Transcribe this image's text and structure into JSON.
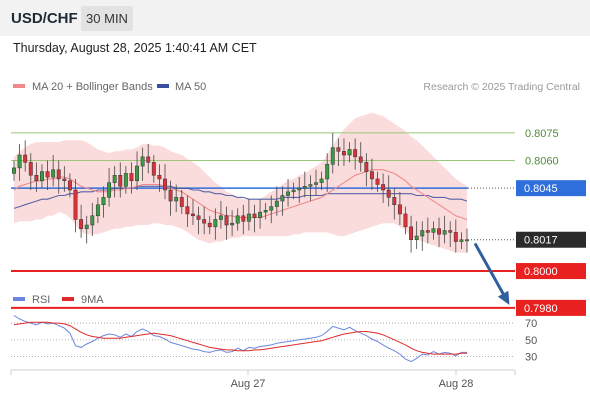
{
  "header": {
    "symbol": "USD/CHF",
    "timeframe": "30 MIN",
    "datetime": "Thursday, August 28, 2025 1:40:41 AM CET"
  },
  "legend": {
    "ma20": "MA 20 + Bollinger Bands",
    "ma50": "MA 50",
    "credit": "Research © 2025 Trading Central",
    "rsi": "RSI",
    "rsi_ma": "9MA"
  },
  "colors": {
    "up": "#3a9b45",
    "down": "#d6333a",
    "bollinger": "#f7b2b2",
    "ma20": "#f08a8a",
    "ma50": "#3a4f9e",
    "level_red": "#e8201f",
    "level_blue": "#2f6fdb",
    "level_green": "#9cc77a",
    "rsi_line": "#6b86dc",
    "rsi_ma_line": "#e02a2a",
    "arrow": "#2f5f9e"
  },
  "chart_data": [
    {
      "type": "candlestick",
      "title": "USD/CHF",
      "y_range": [
        0.7968,
        0.812
      ],
      "x_labels": [
        "Aug 27",
        "Aug 28"
      ],
      "current_price": "0.8017",
      "levels": [
        {
          "label": "0.8075",
          "value": 0.8075,
          "kind": "resistance"
        },
        {
          "label": "0.8060",
          "value": 0.806,
          "kind": "resistance"
        },
        {
          "label": "0.8045",
          "value": 0.8045,
          "kind": "pivot"
        },
        {
          "label": "0.8017",
          "value": 0.8017,
          "kind": "current"
        },
        {
          "label": "0.8000",
          "value": 0.8,
          "kind": "support"
        },
        {
          "label": "0.7980",
          "value": 0.798,
          "kind": "support"
        }
      ],
      "forecast_arrow": {
        "from": 0.8015,
        "to": 0.7983
      },
      "closes": [
        0.8056,
        0.8063,
        0.8059,
        0.8052,
        0.8049,
        0.8054,
        0.8051,
        0.8055,
        0.805,
        0.8049,
        0.8044,
        0.8028,
        0.8023,
        0.8025,
        0.803,
        0.8036,
        0.804,
        0.8048,
        0.8052,
        0.8046,
        0.8053,
        0.8049,
        0.8057,
        0.8062,
        0.8059,
        0.8052,
        0.805,
        0.8044,
        0.8038,
        0.804,
        0.8035,
        0.8031,
        0.803,
        0.8028,
        0.8026,
        0.8024,
        0.8028,
        0.803,
        0.8025,
        0.8026,
        0.803,
        0.8027,
        0.8031,
        0.8029,
        0.8032,
        0.8033,
        0.8035,
        0.8038,
        0.8041,
        0.8043,
        0.8044,
        0.8045,
        0.8046,
        0.8047,
        0.8048,
        0.805,
        0.8058,
        0.8067,
        0.8065,
        0.8063,
        0.8066,
        0.8062,
        0.8059,
        0.8054,
        0.805,
        0.8047,
        0.8044,
        0.804,
        0.8036,
        0.8031,
        0.8024,
        0.8017,
        0.8019,
        0.8022,
        0.8021,
        0.8023,
        0.802,
        0.8022,
        0.8021,
        0.8016,
        0.8017,
        0.8017
      ],
      "ma20": [
        0.8044,
        0.8046,
        0.8047,
        0.8048,
        0.8049,
        0.8049,
        0.805,
        0.805,
        0.8051,
        0.8051,
        0.805,
        0.8048,
        0.8046,
        0.8045,
        0.8044,
        0.8043,
        0.8043,
        0.8043,
        0.8044,
        0.8044,
        0.8045,
        0.8045,
        0.8046,
        0.8047,
        0.8047,
        0.8047,
        0.8047,
        0.8046,
        0.8045,
        0.8044,
        0.8043,
        0.8041,
        0.8039,
        0.8037,
        0.8035,
        0.8033,
        0.8032,
        0.8031,
        0.803,
        0.803,
        0.8029,
        0.8029,
        0.8029,
        0.8029,
        0.8029,
        0.803,
        0.8031,
        0.8032,
        0.8033,
        0.8034,
        0.8035,
        0.8036,
        0.8037,
        0.8038,
        0.8039,
        0.804,
        0.8042,
        0.8044,
        0.8046,
        0.8048,
        0.805,
        0.8052,
        0.8053,
        0.8054,
        0.8055,
        0.8055,
        0.8055,
        0.8054,
        0.8053,
        0.8051,
        0.8049,
        0.8046,
        0.8044,
        0.8042,
        0.804,
        0.8038,
        0.8036,
        0.8034,
        0.8032,
        0.803,
        0.8029,
        0.8028
      ],
      "ma50": [
        0.8034,
        0.8035,
        0.8036,
        0.8037,
        0.8038,
        0.8039,
        0.8039,
        0.804,
        0.8041,
        0.8041,
        0.8042,
        0.8042,
        0.8043,
        0.8043,
        0.8043,
        0.8044,
        0.8044,
        0.8044,
        0.8045,
        0.8045,
        0.8045,
        0.8045,
        0.8046,
        0.8046,
        0.8046,
        0.8046,
        0.8046,
        0.8046,
        0.8046,
        0.8045,
        0.8045,
        0.8045,
        0.8044,
        0.8044,
        0.8043,
        0.8043,
        0.8042,
        0.8042,
        0.8041,
        0.8041,
        0.804,
        0.804,
        0.8039,
        0.8039,
        0.8039,
        0.8039,
        0.8039,
        0.8039,
        0.804,
        0.804,
        0.804,
        0.804,
        0.8041,
        0.8041,
        0.8041,
        0.8041,
        0.8042,
        0.8042,
        0.8042,
        0.8042,
        0.8042,
        0.8042,
        0.8042,
        0.8042,
        0.8042,
        0.8042,
        0.8042,
        0.8042,
        0.8042,
        0.8042,
        0.8042,
        0.8042,
        0.8041,
        0.8041,
        0.8041,
        0.804,
        0.804,
        0.804,
        0.8039,
        0.8039,
        0.8039,
        0.8038
      ],
      "boll_width": [
        0.0018,
        0.0019,
        0.002,
        0.0021,
        0.0021,
        0.0021,
        0.002,
        0.002,
        0.0019,
        0.002,
        0.0021,
        0.0023,
        0.0025,
        0.0025,
        0.0024,
        0.0023,
        0.0022,
        0.0021,
        0.0021,
        0.0021,
        0.0021,
        0.0021,
        0.0021,
        0.0022,
        0.0022,
        0.0021,
        0.0021,
        0.0021,
        0.002,
        0.002,
        0.002,
        0.002,
        0.002,
        0.002,
        0.0019,
        0.0018,
        0.0016,
        0.0015,
        0.0013,
        0.0012,
        0.0011,
        0.001,
        0.001,
        0.001,
        0.001,
        0.0011,
        0.0012,
        0.0013,
        0.0014,
        0.0015,
        0.0015,
        0.0016,
        0.0016,
        0.0017,
        0.0018,
        0.0019,
        0.0021,
        0.0024,
        0.0027,
        0.0029,
        0.003,
        0.0031,
        0.0031,
        0.0031,
        0.0031,
        0.003,
        0.0029,
        0.0028,
        0.0027,
        0.0027,
        0.0027,
        0.0027,
        0.0027,
        0.0026,
        0.0025,
        0.0024,
        0.0023,
        0.0022,
        0.0021,
        0.002,
        0.0019,
        0.0018
      ]
    },
    {
      "type": "line",
      "title": "RSI",
      "y_ticks": [
        70,
        50,
        30
      ],
      "y_range": [
        14,
        88
      ],
      "series": [
        {
          "name": "RSI",
          "values": [
            79,
            75,
            72,
            70,
            68,
            71,
            69,
            70,
            67,
            64,
            58,
            43,
            41,
            45,
            48,
            52,
            55,
            57,
            56,
            53,
            57,
            54,
            60,
            63,
            60,
            55,
            54,
            51,
            47,
            45,
            43,
            41,
            39,
            38,
            36,
            35,
            37,
            38,
            35,
            36,
            40,
            37,
            41,
            40,
            42,
            43,
            44,
            46,
            47,
            48,
            49,
            50,
            51,
            52,
            53,
            55,
            60,
            66,
            64,
            62,
            65,
            61,
            58,
            55,
            51,
            48,
            44,
            40,
            37,
            33,
            27,
            24,
            28,
            33,
            32,
            36,
            33,
            35,
            34,
            31,
            35,
            35
          ]
        },
        {
          "name": "9MA",
          "values": [
            68,
            69,
            70,
            71,
            71,
            71,
            71,
            70,
            70,
            69,
            67,
            63,
            59,
            56,
            54,
            53,
            52,
            52,
            52,
            52,
            53,
            54,
            55,
            56,
            57,
            58,
            57,
            56,
            55,
            53,
            51,
            49,
            47,
            45,
            43,
            41,
            40,
            39,
            38,
            38,
            37,
            37,
            37,
            38,
            38,
            39,
            40,
            41,
            42,
            43,
            44,
            45,
            46,
            47,
            48,
            49,
            51,
            53,
            55,
            57,
            58,
            59,
            60,
            60,
            59,
            58,
            56,
            53,
            50,
            47,
            44,
            40,
            37,
            35,
            34,
            33,
            33,
            33,
            33,
            33,
            34,
            34
          ]
        }
      ],
      "x_labels": [
        "Aug 27",
        "Aug 28"
      ]
    }
  ]
}
